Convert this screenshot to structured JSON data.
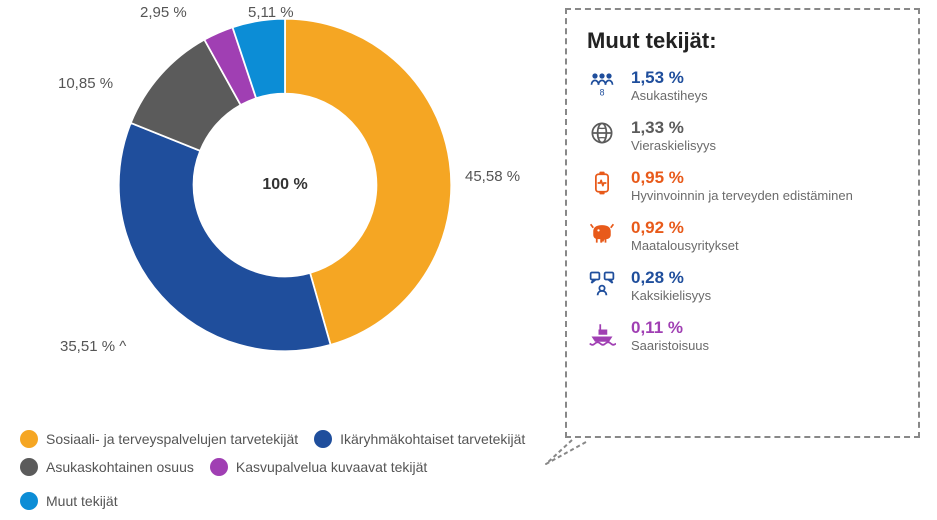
{
  "donut": {
    "type": "pie",
    "center_label": "100 %",
    "center_fontsize": 16,
    "inner_radius_ratio": 0.55,
    "background_color": "#ffffff",
    "slices": [
      {
        "label": "Sosiaali- ja terveyspalvelujen tarvetekijät",
        "value": 45.58,
        "display": "45,58 %",
        "color": "#f5a623"
      },
      {
        "label": "Ikäryhmäkohtaiset tarvetekijät",
        "value": 35.51,
        "display": "35,51 %",
        "color": "#1f4e9c"
      },
      {
        "label": "Asukaskohtainen osuus",
        "value": 10.85,
        "display": "10,85 %",
        "color": "#5b5b5b"
      },
      {
        "label": "Kasvupalvelua kuvaavat tekijät",
        "value": 2.95,
        "display": "2,95 %",
        "color": "#a03fb3"
      },
      {
        "label": "Muut tekijät",
        "value": 5.11,
        "display": "5,11 %",
        "color": "#0c8dd6"
      }
    ],
    "label_fontsize": 15,
    "label_color": "#555555"
  },
  "legend": {
    "rows": [
      [
        0,
        1
      ],
      [
        2,
        3,
        4
      ]
    ]
  },
  "panel": {
    "title": "Muut tekijät:",
    "title_fontsize": 22,
    "border_color": "#888888",
    "factors": [
      {
        "pct": "1,53 %",
        "label": "Asukastiheys",
        "color": "#1f4e9c",
        "icon": "people"
      },
      {
        "pct": "1,33 %",
        "label": "Vieraskielisyys",
        "color": "#5b5b5b",
        "icon": "globe"
      },
      {
        "pct": "0,95 %",
        "label": "Hyvinvoinnin ja terveyden edistäminen",
        "color": "#e85a1a",
        "icon": "health"
      },
      {
        "pct": "0,92 %",
        "label": "Maatalousyritykset",
        "color": "#e85a1a",
        "icon": "cow"
      },
      {
        "pct": "0,28 %",
        "label": "Kaksikielisyys",
        "color": "#1f4e9c",
        "icon": "chat"
      },
      {
        "pct": "0,11 %",
        "label": "Saaristoisuus",
        "color": "#a03fb3",
        "icon": "boat"
      }
    ]
  }
}
